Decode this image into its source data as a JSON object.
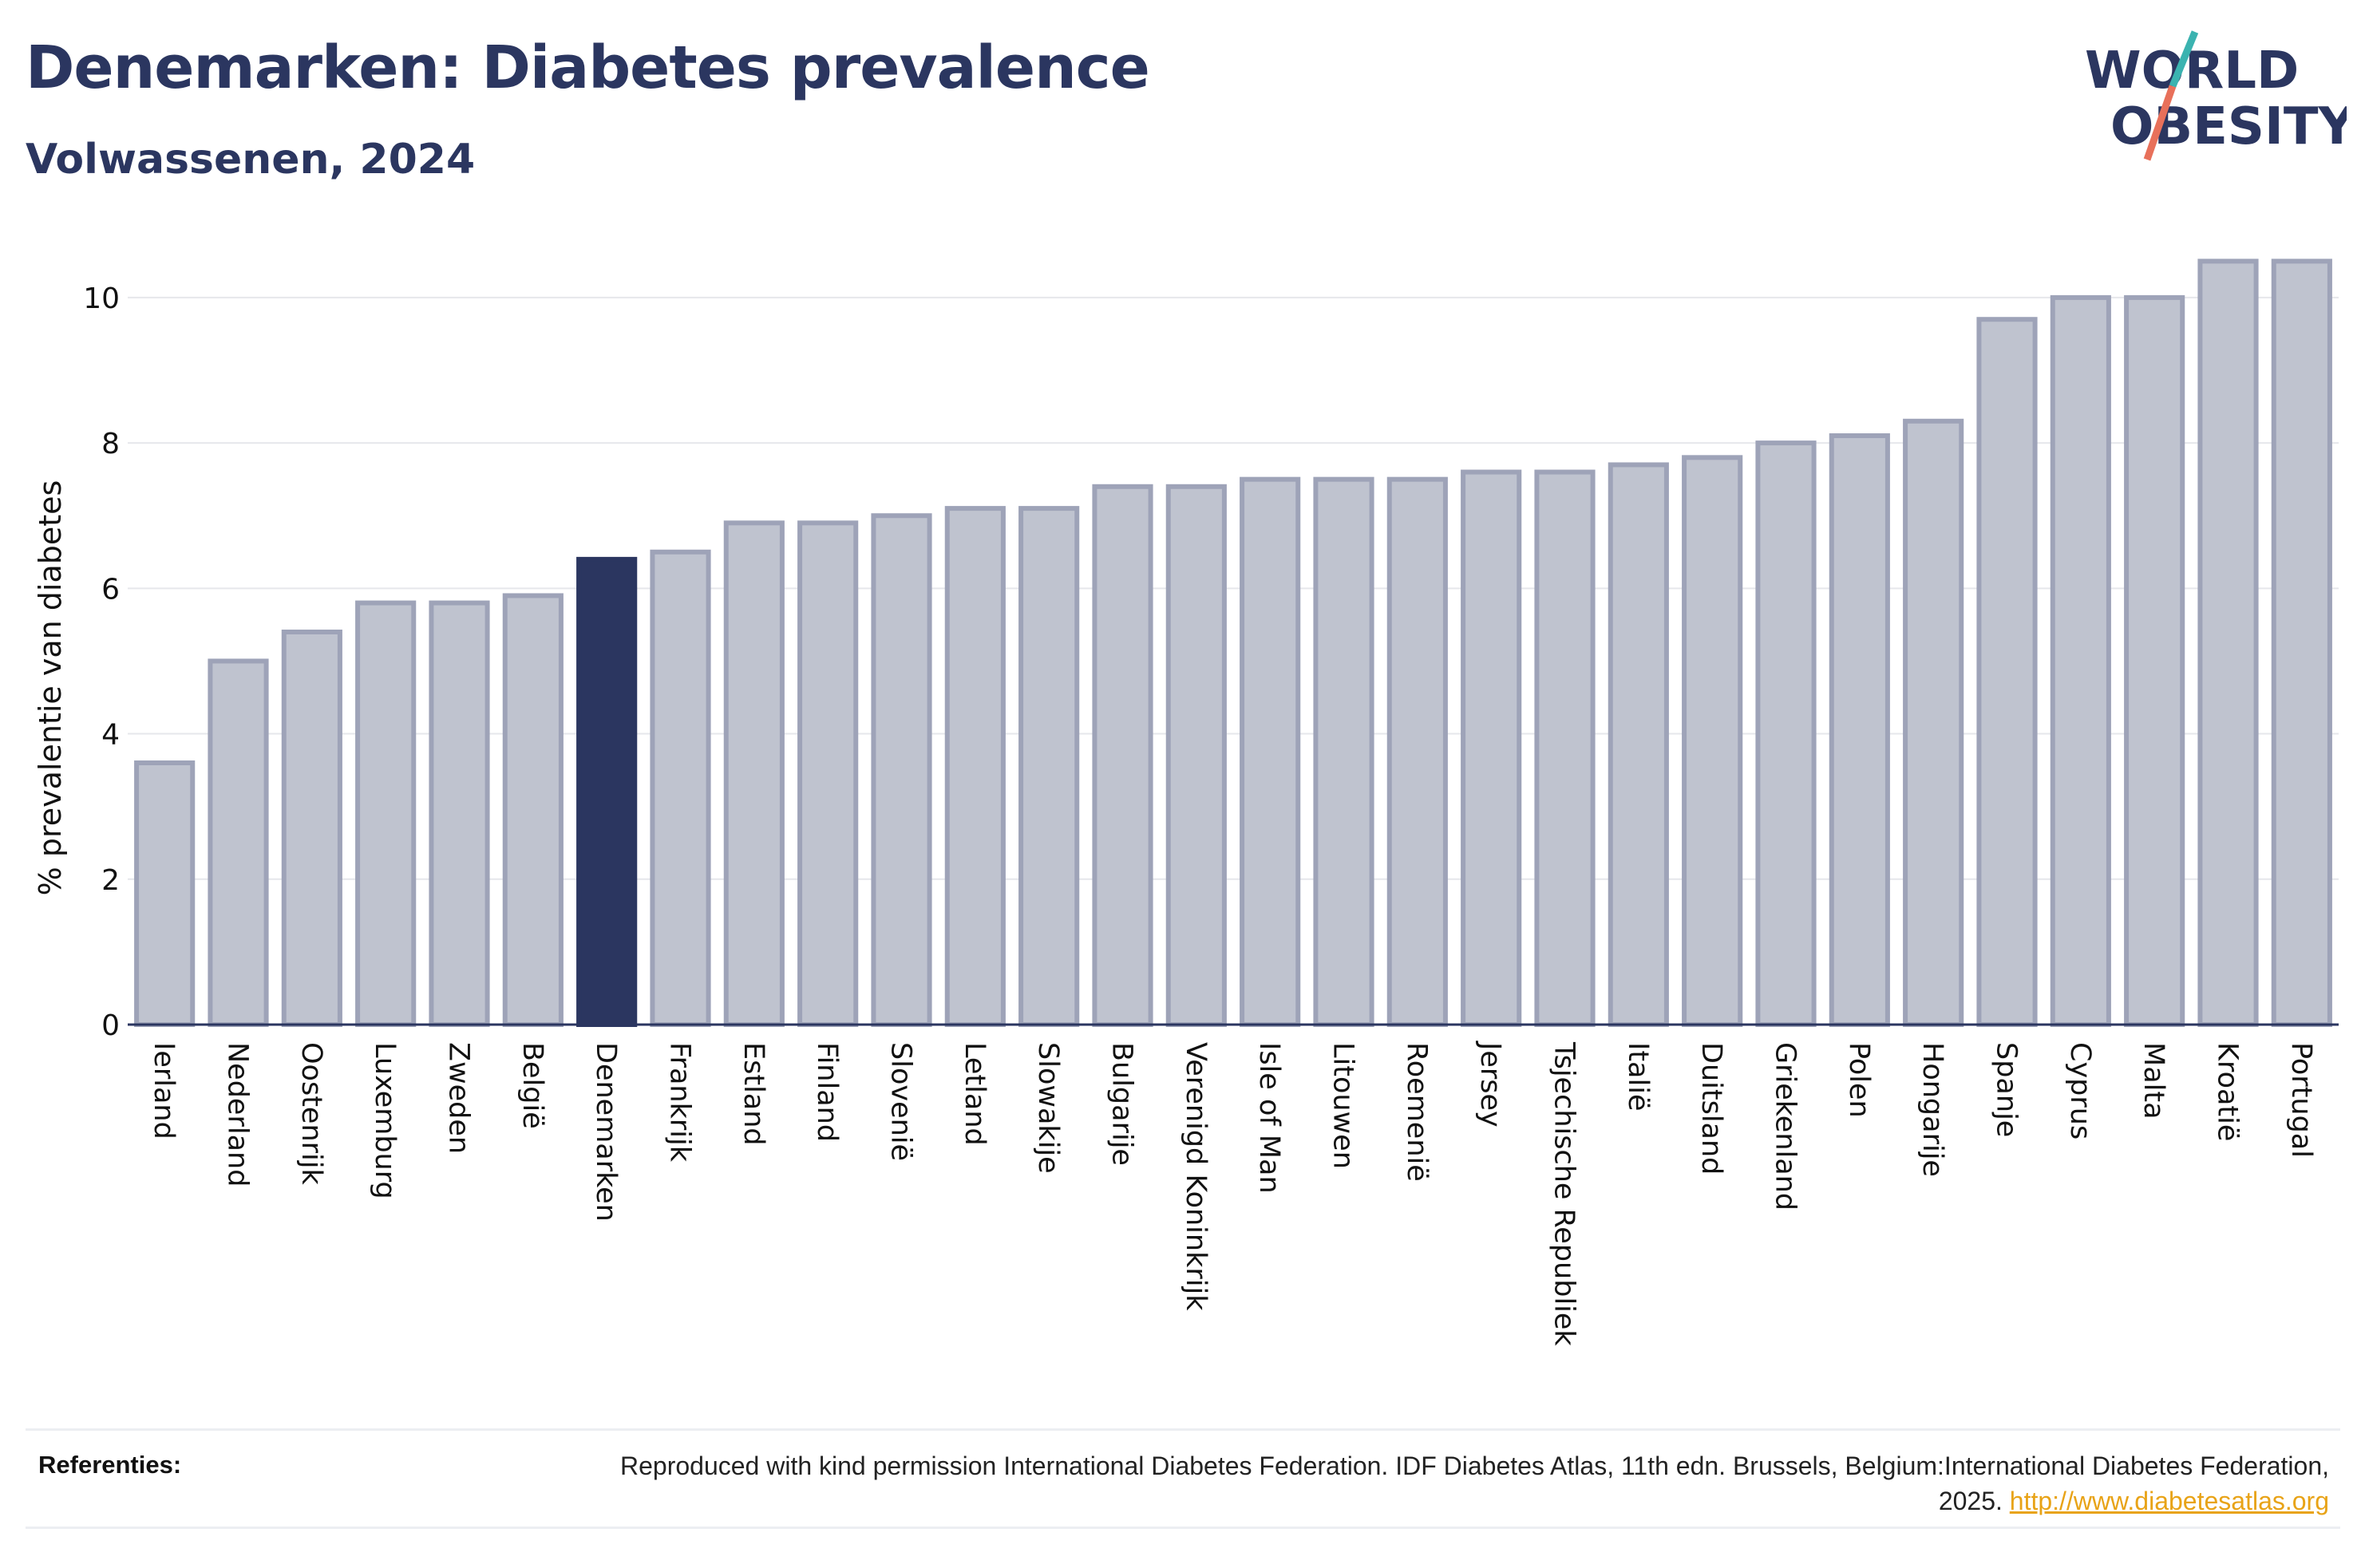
{
  "header": {
    "title": "Denemarken: Diabetes prevalence",
    "subtitle": "Volwassenen, 2024"
  },
  "logo": {
    "line1": "WORLD",
    "line2": "OBESITY",
    "colors": {
      "text": "#2b3660",
      "slash_teal": "#3bb3b0",
      "slash_coral": "#e8705a"
    }
  },
  "colors": {
    "bar_default": "#bfc3cf",
    "bar_border": "#9ea3b8",
    "bar_highlight": "#2b3660",
    "grid": "#e6e7eb",
    "axis": "#2b3660"
  },
  "chart_data": {
    "type": "bar",
    "title": "Denemarken: Diabetes prevalence",
    "subtitle": "Volwassenen, 2024",
    "xlabel": "",
    "ylabel": "% prevalentie van diabetes",
    "ylim": [
      0,
      10.8
    ],
    "yticks": [
      0,
      2,
      4,
      6,
      8,
      10
    ],
    "grid": true,
    "highlight": "Denemarken",
    "categories": [
      "Ierland",
      "Nederland",
      "Oostenrijk",
      "Luxemburg",
      "Zweden",
      "België",
      "Denemarken",
      "Frankrijk",
      "Estland",
      "Finland",
      "Slovenië",
      "Letland",
      "Slowakije",
      "Bulgarije",
      "Verenigd Koninkrijk",
      "Isle of Man",
      "Litouwen",
      "Roemenië",
      "Jersey",
      "Tsjechische Republiek",
      "Italië",
      "Duitsland",
      "Griekenland",
      "Polen",
      "Hongarije",
      "Spanje",
      "Cyprus",
      "Malta",
      "Kroatië",
      "Portugal"
    ],
    "values": [
      3.6,
      5.0,
      5.4,
      5.8,
      5.8,
      5.9,
      6.4,
      6.5,
      6.9,
      6.9,
      7.0,
      7.1,
      7.1,
      7.4,
      7.4,
      7.5,
      7.5,
      7.5,
      7.6,
      7.6,
      7.7,
      7.8,
      8.0,
      8.1,
      8.3,
      9.7,
      10.0,
      10.0,
      10.5,
      10.5
    ]
  },
  "footer": {
    "ref_label": "Referenties:",
    "ref_text": "Reproduced with kind permission International Diabetes Federation. IDF Diabetes Atlas, 11th edn. Brussels, Belgium:International Diabetes Federation, 2025. ",
    "ref_link": "http://www.diabetesatlas.org"
  }
}
